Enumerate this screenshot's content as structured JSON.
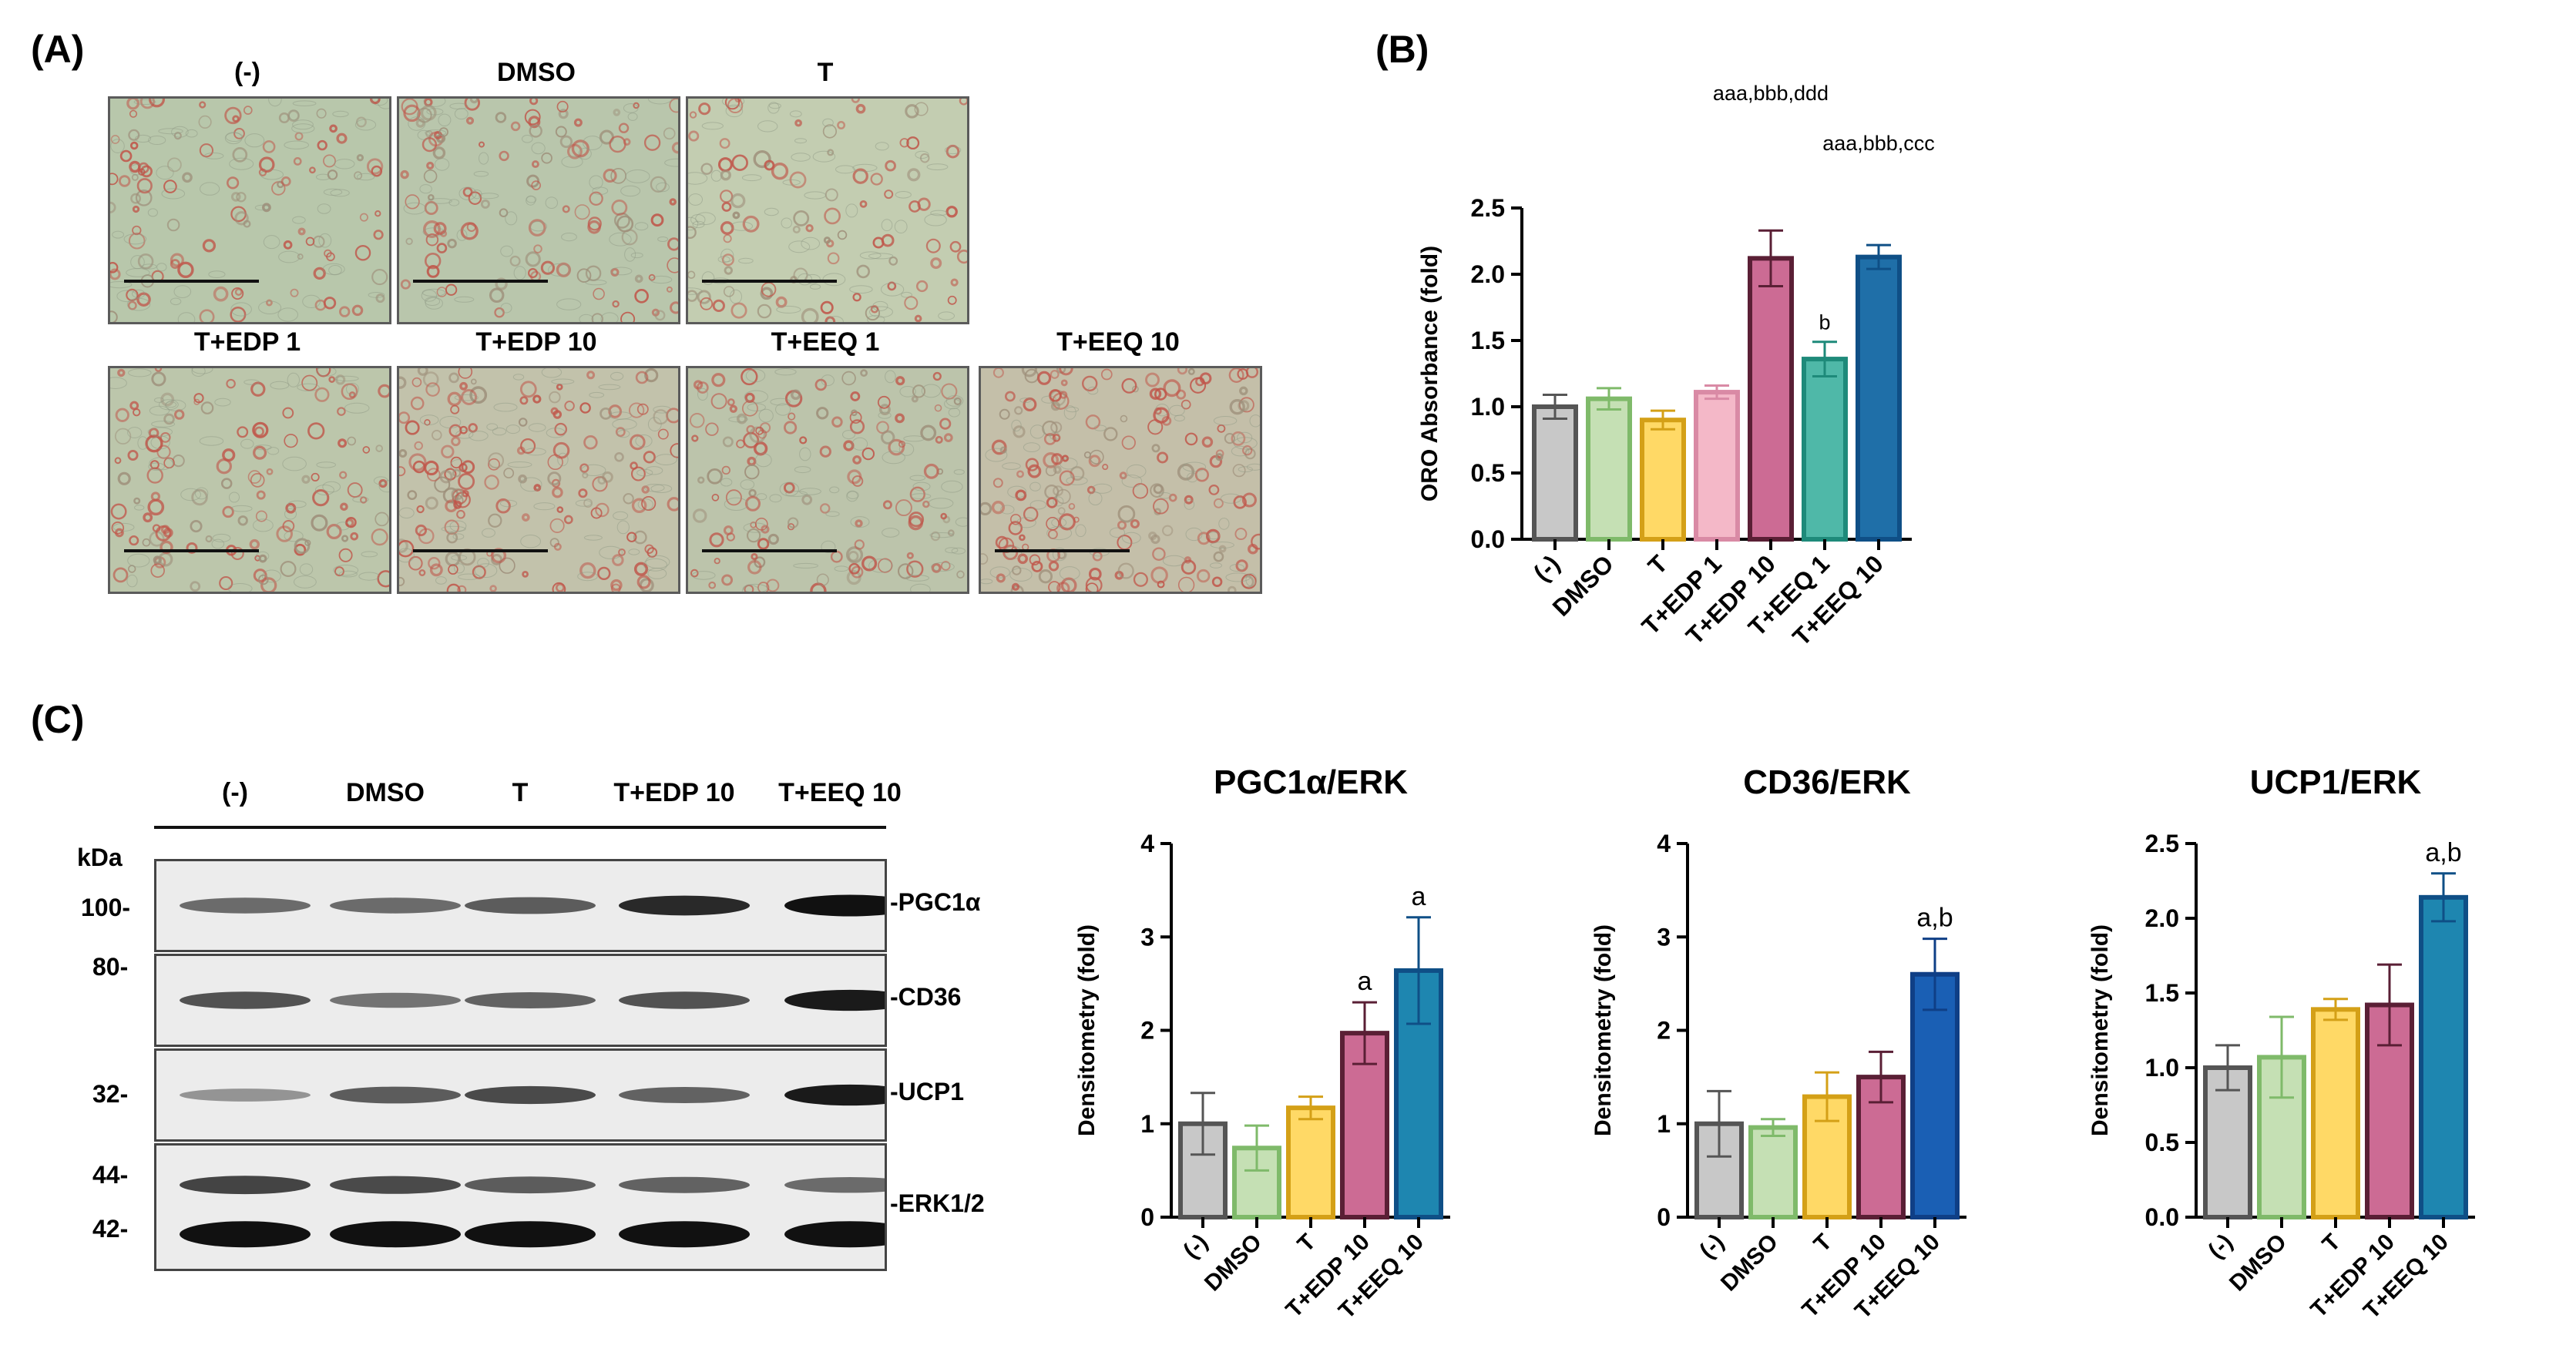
{
  "panel_labels": {
    "a": "(A)",
    "b": "(B)",
    "c": "(C)"
  },
  "micrographs": [
    {
      "title": "(-)",
      "tint": "#b8c7ab",
      "density": 0.45
    },
    {
      "title": "DMSO",
      "tint": "#b9c6ac",
      "density": 0.5
    },
    {
      "title": "T",
      "tint": "#c3cdb1",
      "density": 0.35
    },
    {
      "title": "T+EDP 1",
      "tint": "#bcc6ab",
      "density": 0.55
    },
    {
      "title": "T+EDP 10",
      "tint": "#c2c2ab",
      "density": 0.8
    },
    {
      "title": "T+EEQ 1",
      "tint": "#bcc4ab",
      "density": 0.6
    },
    {
      "title": "T+EEQ 10",
      "tint": "#c4bfa9",
      "density": 0.9
    }
  ],
  "blot": {
    "lanes": [
      "(-)",
      "DMSO",
      "T",
      "T+EDP 10",
      "T+EEQ 10"
    ],
    "kda_unit": "kDa",
    "markers": {
      "m100": "100-",
      "m80": "80-",
      "m32": "32-",
      "m44": "44-",
      "m42": "42-"
    },
    "targets": [
      "-PGC1α",
      "-CD36",
      "-UCP1",
      "-ERK1/2"
    ],
    "intensity": {
      "PGC1a": [
        0.45,
        0.45,
        0.55,
        0.85,
        1.0
      ],
      "CD36": [
        0.6,
        0.4,
        0.5,
        0.6,
        0.95
      ],
      "UCP1": [
        0.2,
        0.55,
        0.65,
        0.5,
        0.95
      ],
      "ERK_upper": [
        0.7,
        0.65,
        0.55,
        0.5,
        0.45
      ],
      "ERK_lower": [
        1.0,
        1.0,
        1.0,
        1.0,
        1.0
      ]
    }
  },
  "chart_data": [
    {
      "type": "bar",
      "title": "",
      "ylabel": "ORO Absorbance (fold)",
      "xlabel": "",
      "categories": [
        "(-)",
        "DMSO",
        "T",
        "T+EDP 1",
        "T+EDP 10",
        "T+EEQ 1",
        "T+EEQ 10"
      ],
      "values": [
        1.0,
        1.06,
        0.9,
        1.11,
        2.12,
        1.36,
        2.13
      ],
      "errors": [
        0.09,
        0.08,
        0.07,
        0.05,
        0.21,
        0.13,
        0.09
      ],
      "annotations": [
        "",
        "",
        "",
        "",
        "aaa,bbb,ddd",
        "b",
        "aaa,bbb,ccc"
      ],
      "ylim": [
        0,
        2.5
      ],
      "yticks": [
        "0.0",
        "0.5",
        "1.0",
        "1.5",
        "2.0",
        "2.5"
      ],
      "colors": [
        "#c8c8c8",
        "#c5e0b4",
        "#ffd966",
        "#f4b8c8",
        "#cc6b94",
        "#4fb8a8",
        "#1f6fa8"
      ],
      "edge_colors": [
        "#555555",
        "#7fba6a",
        "#d4a017",
        "#d98aa5",
        "#5a1f35",
        "#1e8a7a",
        "#0f4f86"
      ]
    },
    {
      "type": "bar",
      "title": "PGC1α/ERK",
      "ylabel": "Densitometry (fold)",
      "xlabel": "",
      "categories": [
        "(-)",
        "DMSO",
        "T",
        "T+EDP 10",
        "T+EEQ 10"
      ],
      "values": [
        1.0,
        0.74,
        1.17,
        1.97,
        2.64
      ],
      "errors": [
        0.33,
        0.24,
        0.12,
        0.33,
        0.57
      ],
      "annotations": [
        "",
        "",
        "",
        "a",
        "a"
      ],
      "ylim": [
        0,
        4
      ],
      "yticks": [
        "0",
        "1",
        "2",
        "3",
        "4"
      ],
      "colors": [
        "#c8c8c8",
        "#c5e0b4",
        "#ffd966",
        "#cc6b94",
        "#1e86b0"
      ],
      "edge_colors": [
        "#555555",
        "#7fba6a",
        "#d4a017",
        "#5a1f35",
        "#0f4f86"
      ]
    },
    {
      "type": "bar",
      "title": "CD36/ERK",
      "ylabel": "Densitometry (fold)",
      "xlabel": "",
      "categories": [
        "(-)",
        "DMSO",
        "T",
        "T+EDP 10",
        "T+EEQ 10"
      ],
      "values": [
        1.0,
        0.96,
        1.29,
        1.5,
        2.6
      ],
      "errors": [
        0.35,
        0.09,
        0.26,
        0.27,
        0.38
      ],
      "annotations": [
        "",
        "",
        "",
        "",
        "a,b"
      ],
      "ylim": [
        0,
        4
      ],
      "yticks": [
        "0",
        "1",
        "2",
        "3",
        "4"
      ],
      "colors": [
        "#c8c8c8",
        "#c5e0b4",
        "#ffd966",
        "#cc6b94",
        "#1a5fb4"
      ],
      "edge_colors": [
        "#555555",
        "#7fba6a",
        "#d4a017",
        "#5a1f35",
        "#0f3f86"
      ]
    },
    {
      "type": "bar",
      "title": "UCP1/ERK",
      "ylabel": "Densitometry (fold)",
      "xlabel": "",
      "categories": [
        "(-)",
        "DMSO",
        "T",
        "T+EDP 10",
        "T+EEQ 10"
      ],
      "values": [
        1.0,
        1.07,
        1.39,
        1.42,
        2.14
      ],
      "errors": [
        0.15,
        0.27,
        0.07,
        0.27,
        0.16
      ],
      "annotations": [
        "",
        "",
        "",
        "",
        "a,b"
      ],
      "ylim": [
        0,
        2.5
      ],
      "yticks": [
        "0.0",
        "0.5",
        "1.0",
        "1.5",
        "2.0",
        "2.5"
      ],
      "colors": [
        "#c8c8c8",
        "#c5e0b4",
        "#ffd966",
        "#cc6b94",
        "#1e86b0"
      ],
      "edge_colors": [
        "#555555",
        "#7fba6a",
        "#d4a017",
        "#5a1f35",
        "#0f4f86"
      ]
    }
  ]
}
